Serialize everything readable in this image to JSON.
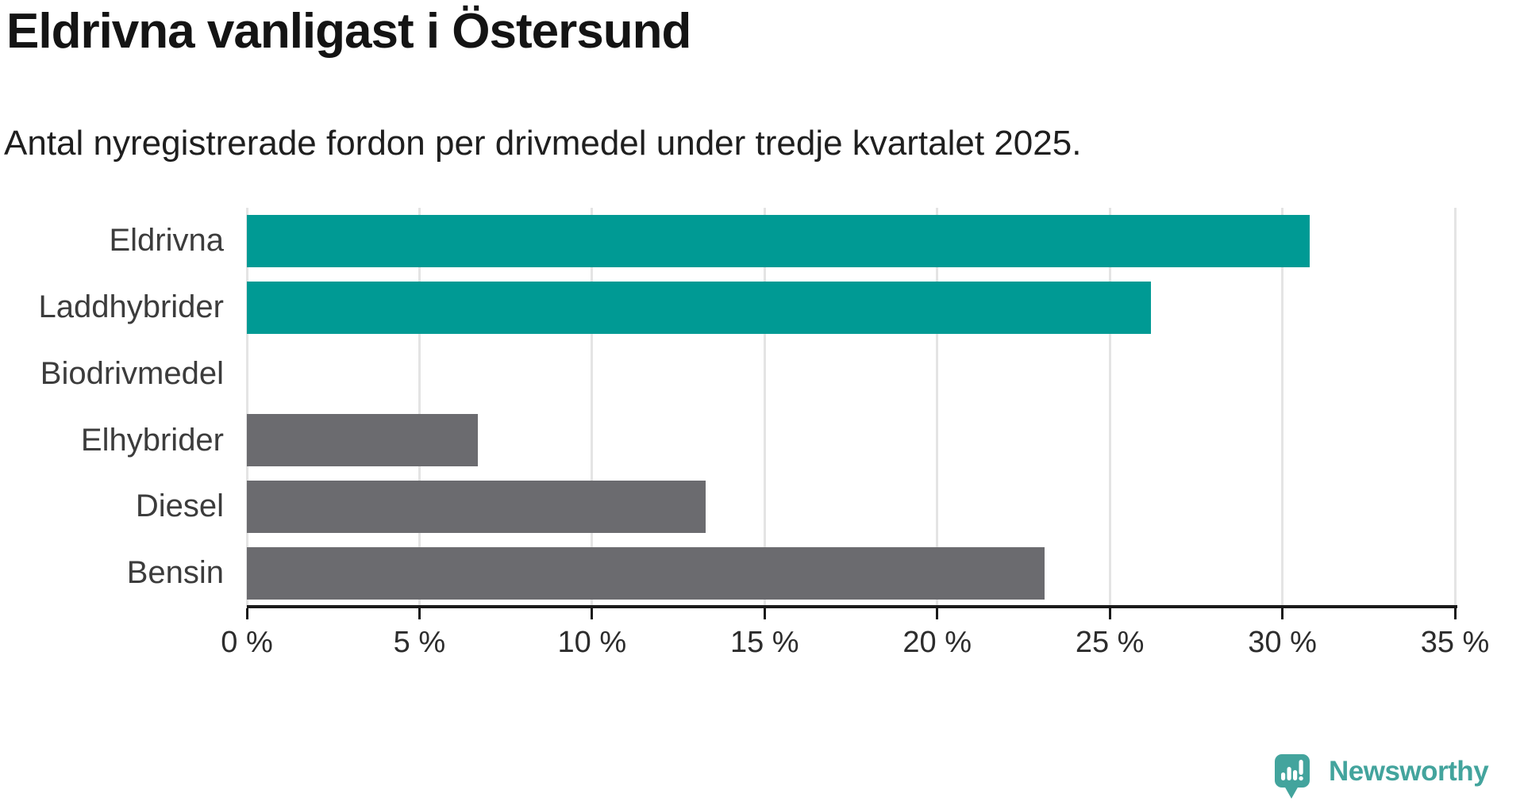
{
  "title": "Eldrivna vanligast i Östersund",
  "subtitle": "Antal nyregistrerade fordon per drivmedel under tredje kvartalet 2025.",
  "chart_data": {
    "type": "bar",
    "orientation": "horizontal",
    "title": "Eldrivna vanligast i Östersund",
    "subtitle": "Antal nyregistrerade fordon per drivmedel under tredje kvartalet 2025.",
    "categories": [
      "Eldrivna",
      "Laddhybrider",
      "Biodrivmedel",
      "Elhybrider",
      "Diesel",
      "Bensin"
    ],
    "values": [
      30.8,
      26.2,
      0,
      6.7,
      13.3,
      23.1
    ],
    "unit": "%",
    "xlim": [
      0,
      35
    ],
    "x_ticks": [
      "0 %",
      "5 %",
      "10 %",
      "15 %",
      "20 %",
      "25 %",
      "30 %",
      "35 %"
    ],
    "x_tick_values": [
      0,
      5,
      10,
      15,
      20,
      25,
      30,
      35
    ],
    "grid": true,
    "legend": "none",
    "highlight_color": "#009a94",
    "default_color": "#6b6b6f",
    "bar_colors": [
      "#009a94",
      "#009a94",
      "#6b6b6f",
      "#6b6b6f",
      "#6b6b6f",
      "#6b6b6f"
    ]
  },
  "branding": {
    "logo_text": "Newsworthy",
    "logo_color": "#43a49d",
    "logo_icon": "speech-bubble-bar-chart-icon"
  }
}
